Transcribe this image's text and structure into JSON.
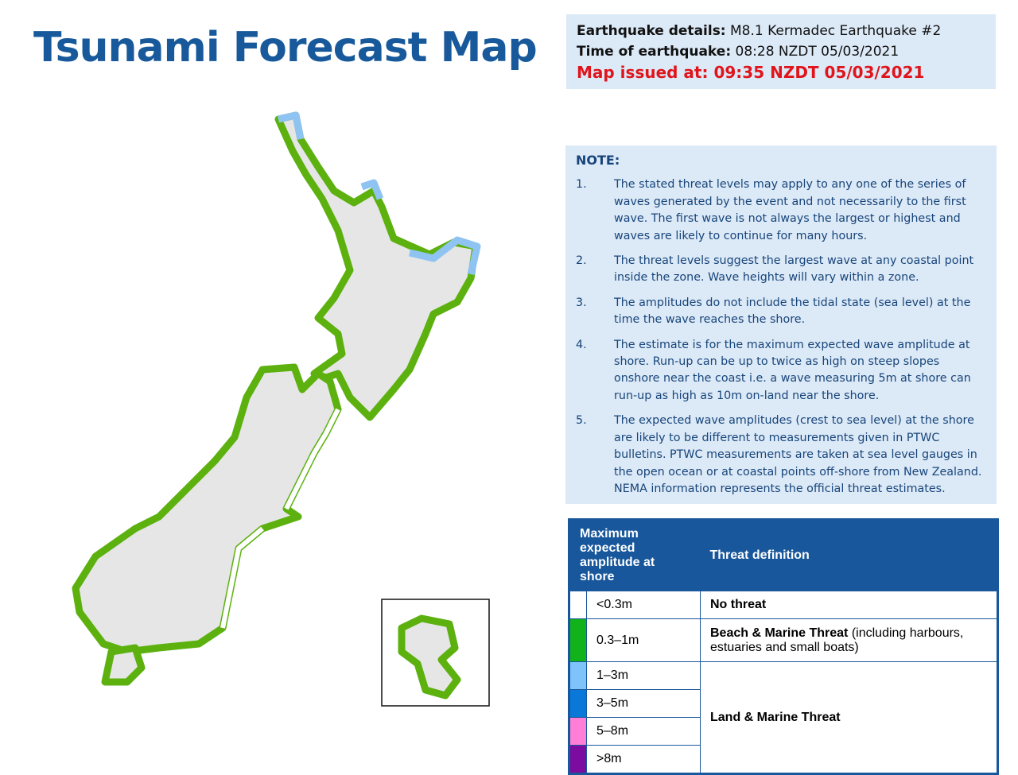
{
  "title": "Tsunami Forecast Map",
  "details": [
    {
      "label": "Earthquake details:",
      "value": "M8.1 Kermadec Earthquake #2"
    },
    {
      "label": "Time of earthquake:",
      "value": "08:28 NZDT 05/03/2021"
    },
    {
      "label": "Map issued at:",
      "value": "09:35 NZDT 05/03/2021"
    }
  ],
  "note": {
    "heading": "NOTE:",
    "items": [
      {
        "number": "1.",
        "text": "The stated threat levels may apply to any one of the series of waves generated by the event and not necessarily to the first wave. The first wave is not always the largest or highest and waves are likely to continue for many hours."
      },
      {
        "number": "2.",
        "text": "The threat levels suggest the largest wave at any coastal point inside the zone. Wave heights will vary within a zone."
      },
      {
        "number": "3.",
        "text": "The amplitudes do not include the tidal state (sea level) at the time the wave reaches the shore."
      },
      {
        "number": "4.",
        "text": "The estimate is for the maximum expected wave amplitude at shore. Run-up can be up to twice as high on steep slopes onshore near the coast i.e. a wave measuring 5m at shore can run-up as high as 10m on-land near the shore."
      },
      {
        "number": "5.",
        "text": "The expected wave amplitudes (crest to sea level) at the shore are likely to be different to measurements given in PTWC bulletins. PTWC measurements are taken at sea level gauges in the open ocean or at coastal points off-shore from New Zealand. NEMA information represents the official threat estimates."
      }
    ]
  },
  "legend": {
    "headers": [
      "Maximum expected amplitude at shore",
      "Threat definition"
    ],
    "groups": [
      {
        "name": "No threat",
        "levels": [
          {
            "label": "<0.3m",
            "color": "#ffffff"
          }
        ]
      },
      {
        "name": "Beach & Marine Threat",
        "detail": "(including harbours, estuaries and small boats)",
        "levels": [
          {
            "label": "0.3–1m",
            "color": "#12b21b"
          }
        ]
      },
      {
        "name": "Land & Marine Threat",
        "levels": [
          {
            "label": "1–3m",
            "color": "#7ec4fb"
          },
          {
            "label": "3–5m",
            "color": "#0a78d8"
          },
          {
            "label": "5–8m",
            "color": "#ff7fd6"
          },
          {
            "label": ">8m",
            "color": "#7b0c9f"
          }
        ]
      }
    ]
  }
}
